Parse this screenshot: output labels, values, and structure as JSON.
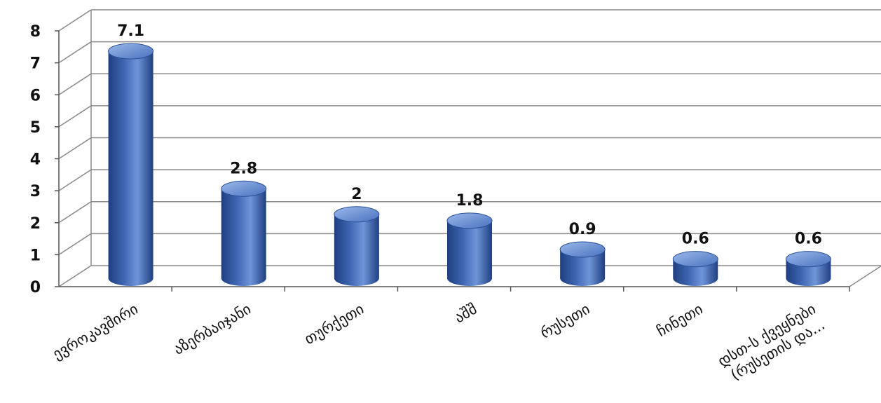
{
  "chart_data": {
    "type": "bar",
    "categories": [
      "ევროკავშირი",
      "აზერბაიჯანი",
      "თურქეთი",
      "აშშ",
      "რუსეთი",
      "ჩინეთი",
      "დსთ-ს ქვეყნები (რუსეთის და..."
    ],
    "values": [
      7.1,
      2.8,
      2,
      1.8,
      0.9,
      0.6,
      0.6
    ],
    "value_labels": [
      "7.1",
      "2.8",
      "2",
      "1.8",
      "0.9",
      "0.6",
      "0.6"
    ],
    "ylim": [
      0,
      8
    ],
    "yticks": [
      "0",
      "1",
      "2",
      "3",
      "4",
      "5",
      "6",
      "7",
      "8"
    ],
    "grid": true,
    "style": "3d-cylinder",
    "colors": {
      "bar": "#3f66b2",
      "bar_dark": "#1f3f80",
      "bar_light": "#9ab8ea",
      "grid": "#8a8a8a"
    }
  }
}
